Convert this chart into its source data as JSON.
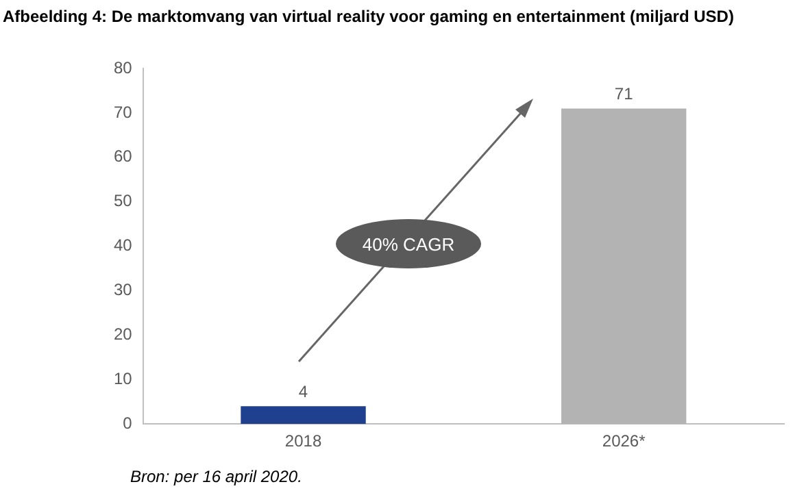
{
  "chart_data": {
    "type": "bar",
    "title": "Afbeelding 4: De marktomvang van virtual reality voor gaming en entertainment (miljard USD)",
    "categories": [
      "2018",
      "2026*"
    ],
    "values": [
      4,
      71
    ],
    "colors": [
      "#1f3f8f",
      "#b3b3b3"
    ],
    "ylim": [
      0,
      80
    ],
    "yticks": [
      0,
      10,
      20,
      30,
      40,
      50,
      60,
      70,
      80
    ],
    "data_labels": true,
    "annotations": [
      "40% CAGR",
      "Bron: per 16 april 2020."
    ]
  }
}
